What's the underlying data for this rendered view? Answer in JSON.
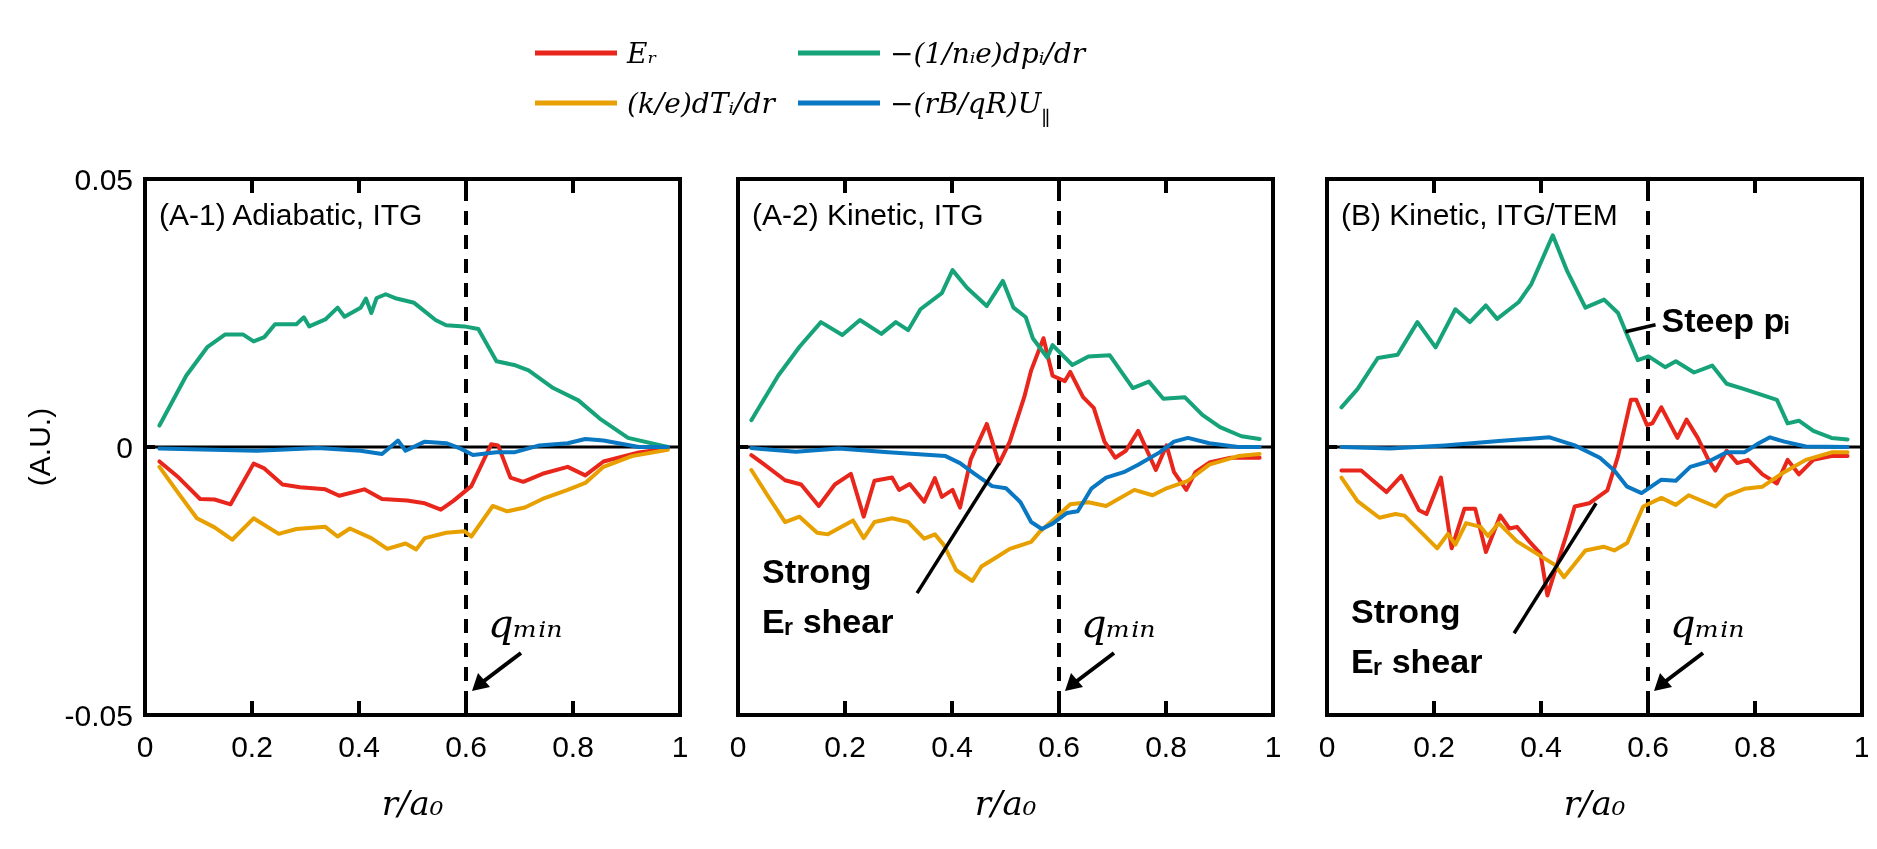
{
  "chart_data": [
    {
      "type": "line",
      "title": "(A-1) Adiabatic, ITG",
      "xlabel": "r/a₀",
      "ylabel": "(A.U.)",
      "xlim": [
        0,
        1
      ],
      "xticks": [
        0,
        0.2,
        0.4,
        0.6,
        0.8,
        1
      ],
      "ylim": [
        -0.05,
        0.05
      ],
      "yticks": [
        -0.05,
        0,
        0.05
      ],
      "legend": "top",
      "line_style": "solid",
      "ref_lines": [
        {
          "axis": "y",
          "value": 0,
          "color": "#000000",
          "line_style": "solid"
        },
        {
          "axis": "x",
          "value": 0.6,
          "label": "qₘᵢₙ",
          "color": "#000000",
          "line_style": "dashed"
        }
      ],
      "series": [
        {
          "name": "Eᵣ",
          "color": "#e8261b",
          "x": [
            0.027,
            0.063,
            0.103,
            0.13,
            0.16,
            0.203,
            0.223,
            0.257,
            0.29,
            0.337,
            0.363,
            0.41,
            0.443,
            0.49,
            0.523,
            0.553,
            0.577,
            0.61,
            0.647,
            0.66,
            0.683,
            0.707,
            0.743,
            0.79,
            0.823,
            0.857,
            0.923,
            0.977
          ],
          "values": [
            -0.0027,
            -0.0057,
            -0.0097,
            -0.0098,
            -0.0107,
            -0.0031,
            -0.004,
            -0.007,
            -0.0075,
            -0.0079,
            -0.0091,
            -0.0079,
            -0.0097,
            -0.01,
            -0.0105,
            -0.0117,
            -0.01,
            -0.0073,
            0.0005,
            0.0003,
            -0.0057,
            -0.0065,
            -0.005,
            -0.0037,
            -0.0053,
            -0.0027,
            -0.001,
            -0.0003
          ]
        },
        {
          "name": "−(1/nᵢe)dpᵢ/dr",
          "color": "#16a37a",
          "x": [
            0.027,
            0.077,
            0.117,
            0.15,
            0.183,
            0.203,
            0.223,
            0.243,
            0.283,
            0.297,
            0.307,
            0.337,
            0.36,
            0.373,
            0.403,
            0.413,
            0.423,
            0.433,
            0.45,
            0.47,
            0.503,
            0.523,
            0.543,
            0.563,
            0.597,
            0.623,
            0.657,
            0.69,
            0.717,
            0.763,
            0.81,
            0.85,
            0.903,
            0.977
          ],
          "values": [
            0.004,
            0.0133,
            0.0187,
            0.021,
            0.021,
            0.0197,
            0.0205,
            0.0229,
            0.0229,
            0.0242,
            0.0225,
            0.0238,
            0.026,
            0.0243,
            0.026,
            0.0277,
            0.025,
            0.0278,
            0.0285,
            0.0277,
            0.0269,
            0.0253,
            0.0237,
            0.0227,
            0.0225,
            0.022,
            0.016,
            0.0153,
            0.0143,
            0.011,
            0.0087,
            0.0053,
            0.0017,
            0
          ]
        },
        {
          "name": "(k/e)dTᵢ/dr",
          "color": "#e8a000",
          "x": [
            0.027,
            0.063,
            0.097,
            0.13,
            0.163,
            0.203,
            0.25,
            0.283,
            0.337,
            0.36,
            0.383,
            0.423,
            0.453,
            0.487,
            0.507,
            0.523,
            0.563,
            0.597,
            0.61,
            0.65,
            0.677,
            0.71,
            0.743,
            0.79,
            0.823,
            0.857,
            0.91,
            0.977
          ],
          "values": [
            -0.0037,
            -0.0087,
            -0.0133,
            -0.015,
            -0.0173,
            -0.0133,
            -0.0162,
            -0.0153,
            -0.0149,
            -0.0167,
            -0.0152,
            -0.017,
            -0.019,
            -0.018,
            -0.0191,
            -0.017,
            -0.016,
            -0.0157,
            -0.0167,
            -0.011,
            -0.012,
            -0.0113,
            -0.0097,
            -0.008,
            -0.0067,
            -0.0037,
            -0.0017,
            -0.0005
          ]
        },
        {
          "name": "−(rB/qR)U$_{∥}$",
          "color": "#0a77c2",
          "x": [
            0.027,
            0.21,
            0.323,
            0.403,
            0.443,
            0.473,
            0.487,
            0.523,
            0.563,
            0.59,
            0.613,
            0.657,
            0.69,
            0.737,
            0.79,
            0.823,
            0.857,
            0.923,
            0.977
          ],
          "values": [
            -0.0003,
            -0.0007,
            -0.0002,
            -0.0007,
            -0.0013,
            0.0012,
            -0.0007,
            0.001,
            0.0007,
            -0.0003,
            -0.0015,
            -0.001,
            -0.001,
            0.0003,
            0.0007,
            0.0015,
            0.0012,
            0,
            0
          ]
        }
      ]
    },
    {
      "type": "line",
      "title": "(A-2) Kinetic, ITG",
      "xlabel": "r/a₀",
      "xlim": [
        0,
        1
      ],
      "xticks": [
        0,
        0.2,
        0.4,
        0.6,
        0.8,
        1
      ],
      "ylim": [
        -0.05,
        0.05
      ],
      "yticks": [
        -0.05,
        0,
        0.05
      ],
      "tick_labels": "x",
      "line_style": "solid",
      "ref_lines": [
        {
          "axis": "y",
          "value": 0,
          "color": "#000000",
          "line_style": "solid"
        },
        {
          "axis": "x",
          "value": 0.6,
          "label": "qₘᵢₙ",
          "color": "#000000",
          "line_style": "dashed"
        }
      ],
      "annotations": [
        {
          "text": "Strong Eᵣ shear",
          "x": 0.488,
          "y": -0.003
        }
      ],
      "series": [
        {
          "color": "#e8261b",
          "x": [
            0.025,
            0.055,
            0.088,
            0.118,
            0.151,
            0.181,
            0.211,
            0.235,
            0.255,
            0.288,
            0.301,
            0.321,
            0.348,
            0.368,
            0.381,
            0.401,
            0.415,
            0.435,
            0.465,
            0.488,
            0.508,
            0.535,
            0.548,
            0.571,
            0.588,
            0.611,
            0.621,
            0.645,
            0.665,
            0.685,
            0.705,
            0.725,
            0.748,
            0.781,
            0.801,
            0.815,
            0.838,
            0.855,
            0.881,
            0.921,
            0.975
          ],
          "values": [
            -0.0015,
            -0.0037,
            -0.0062,
            -0.007,
            -0.011,
            -0.007,
            -0.005,
            -0.013,
            -0.0063,
            -0.0057,
            -0.008,
            -0.0069,
            -0.0102,
            -0.0058,
            -0.0093,
            -0.008,
            -0.0113,
            -0.0023,
            0.0043,
            -0.0031,
            0.001,
            0.0093,
            0.0143,
            0.0203,
            0.0133,
            0.0123,
            0.014,
            0.0093,
            0.0073,
            0.001,
            -0.002,
            -0.0007,
            0.003,
            -0.0043,
            0.0003,
            -0.0047,
            -0.008,
            -0.0047,
            -0.0029,
            -0.002,
            -0.002
          ]
        },
        {
          "color": "#16a37a",
          "x": [
            0.025,
            0.075,
            0.115,
            0.155,
            0.195,
            0.228,
            0.268,
            0.295,
            0.318,
            0.341,
            0.381,
            0.401,
            0.428,
            0.465,
            0.495,
            0.515,
            0.538,
            0.551,
            0.578,
            0.588,
            0.625,
            0.655,
            0.695,
            0.738,
            0.768,
            0.795,
            0.835,
            0.868,
            0.901,
            0.941,
            0.975
          ],
          "values": [
            0.005,
            0.0133,
            0.0187,
            0.0233,
            0.0209,
            0.0237,
            0.0211,
            0.0233,
            0.0218,
            0.0257,
            0.0287,
            0.033,
            0.0297,
            0.0263,
            0.031,
            0.026,
            0.0242,
            0.0203,
            0.0167,
            0.019,
            0.0153,
            0.0169,
            0.0171,
            0.011,
            0.0122,
            0.009,
            0.0093,
            0.006,
            0.0037,
            0.002,
            0.0015
          ]
        },
        {
          "color": "#e8a000",
          "x": [
            0.025,
            0.055,
            0.088,
            0.115,
            0.148,
            0.168,
            0.215,
            0.235,
            0.255,
            0.288,
            0.318,
            0.348,
            0.368,
            0.385,
            0.408,
            0.438,
            0.455,
            0.481,
            0.508,
            0.548,
            0.565,
            0.588,
            0.621,
            0.655,
            0.688,
            0.741,
            0.775,
            0.801,
            0.841,
            0.881,
            0.935,
            0.975
          ],
          "values": [
            -0.0043,
            -0.009,
            -0.014,
            -0.013,
            -0.016,
            -0.0163,
            -0.0137,
            -0.017,
            -0.014,
            -0.0133,
            -0.014,
            -0.0171,
            -0.0163,
            -0.0183,
            -0.023,
            -0.025,
            -0.0223,
            -0.0207,
            -0.019,
            -0.0177,
            -0.0157,
            -0.0137,
            -0.0107,
            -0.0103,
            -0.011,
            -0.008,
            -0.009,
            -0.0077,
            -0.0063,
            -0.0033,
            -0.0017,
            -0.0013
          ]
        },
        {
          "color": "#0a77c2",
          "x": [
            0.025,
            0.108,
            0.188,
            0.281,
            0.388,
            0.415,
            0.441,
            0.475,
            0.501,
            0.528,
            0.548,
            0.568,
            0.588,
            0.615,
            0.635,
            0.661,
            0.688,
            0.721,
            0.748,
            0.788,
            0.815,
            0.841,
            0.881,
            0.935,
            0.975
          ],
          "values": [
            -0.0002,
            -0.0009,
            -0.0003,
            -0.001,
            -0.0017,
            -0.003,
            -0.0049,
            -0.0073,
            -0.0077,
            -0.0103,
            -0.014,
            -0.0153,
            -0.0143,
            -0.0123,
            -0.012,
            -0.0077,
            -0.0057,
            -0.0047,
            -0.0033,
            -0.001,
            0.001,
            0.0017,
            0.0007,
            0,
            0
          ]
        }
      ]
    },
    {
      "type": "line",
      "title": "(B) Kinetic, ITG/TEM",
      "xlabel": "r/a₀",
      "xlim": [
        0,
        1
      ],
      "xticks": [
        0,
        0.2,
        0.4,
        0.6,
        0.8,
        1
      ],
      "ylim": [
        -0.05,
        0.05
      ],
      "yticks": [
        -0.05,
        0,
        0.05
      ],
      "tick_labels": "x",
      "line_style": "solid",
      "ref_lines": [
        {
          "axis": "y",
          "value": 0,
          "color": "#000000",
          "line_style": "solid"
        },
        {
          "axis": "x",
          "value": 0.6,
          "label": "qₘᵢₙ",
          "color": "#000000",
          "line_style": "dashed"
        }
      ],
      "annotations": [
        {
          "text": "Strong Eᵣ shear",
          "x": 0.503,
          "y": -0.0105
        },
        {
          "text": "Steep pᵢ",
          "x": 0.558,
          "y": 0.0215
        }
      ],
      "series": [
        {
          "color": "#e8261b",
          "x": [
            0.027,
            0.064,
            0.084,
            0.111,
            0.139,
            0.172,
            0.186,
            0.213,
            0.233,
            0.257,
            0.277,
            0.297,
            0.324,
            0.341,
            0.355,
            0.378,
            0.399,
            0.412,
            0.449,
            0.463,
            0.49,
            0.524,
            0.544,
            0.568,
            0.578,
            0.598,
            0.608,
            0.625,
            0.655,
            0.672,
            0.693,
            0.713,
            0.726,
            0.747,
            0.767,
            0.787,
            0.814,
            0.841,
            0.861,
            0.882,
            0.909,
            0.943,
            0.973
          ],
          "values": [
            -0.0044,
            -0.0044,
            -0.0061,
            -0.0084,
            -0.0054,
            -0.0118,
            -0.0125,
            -0.0057,
            -0.0189,
            -0.0115,
            -0.0115,
            -0.0196,
            -0.0128,
            -0.0152,
            -0.0149,
            -0.0176,
            -0.0199,
            -0.0277,
            -0.0159,
            -0.0111,
            -0.0105,
            -0.0081,
            -0.0017,
            0.0088,
            0.0088,
            0.0041,
            0.0044,
            0.0074,
            0.0017,
            0.0051,
            0.0017,
            -0.0024,
            -0.0044,
            -0.0007,
            -0.003,
            -0.0024,
            -0.0051,
            -0.0068,
            -0.0024,
            -0.0051,
            -0.0024,
            -0.0017,
            -0.0017
          ]
        },
        {
          "color": "#16a37a",
          "x": [
            0.027,
            0.057,
            0.095,
            0.132,
            0.169,
            0.203,
            0.24,
            0.267,
            0.297,
            0.318,
            0.358,
            0.382,
            0.422,
            0.449,
            0.483,
            0.518,
            0.544,
            0.561,
            0.581,
            0.601,
            0.632,
            0.652,
            0.686,
            0.72,
            0.747,
            0.78,
            0.841,
            0.861,
            0.882,
            0.909,
            0.943,
            0.973
          ],
          "values": [
            0.0074,
            0.0108,
            0.0166,
            0.0172,
            0.0233,
            0.0186,
            0.0257,
            0.0233,
            0.0264,
            0.0239,
            0.027,
            0.0304,
            0.0395,
            0.0328,
            0.026,
            0.0275,
            0.025,
            0.0209,
            0.0162,
            0.0169,
            0.0149,
            0.016,
            0.0139,
            0.0152,
            0.0118,
            0.0108,
            0.0088,
            0.0044,
            0.0049,
            0.003,
            0.0017,
            0.0014
          ]
        },
        {
          "color": "#e8a000",
          "x": [
            0.027,
            0.057,
            0.098,
            0.128,
            0.145,
            0.172,
            0.206,
            0.226,
            0.24,
            0.26,
            0.287,
            0.301,
            0.321,
            0.355,
            0.392,
            0.426,
            0.443,
            0.483,
            0.517,
            0.537,
            0.561,
            0.591,
            0.625,
            0.652,
            0.676,
            0.726,
            0.747,
            0.78,
            0.814,
            0.848,
            0.895,
            0.943,
            0.973
          ],
          "values": [
            -0.0057,
            -0.0101,
            -0.0132,
            -0.0125,
            -0.0128,
            -0.0155,
            -0.0189,
            -0.0162,
            -0.0182,
            -0.0142,
            -0.0149,
            -0.0166,
            -0.0142,
            -0.0176,
            -0.0199,
            -0.022,
            -0.0243,
            -0.0193,
            -0.0186,
            -0.0193,
            -0.0179,
            -0.0111,
            -0.0095,
            -0.0108,
            -0.009,
            -0.0111,
            -0.0091,
            -0.0078,
            -0.0074,
            -0.0051,
            -0.0024,
            -0.001,
            -0.001
          ]
        },
        {
          "color": "#0a77c2",
          "x": [
            0.027,
            0.118,
            0.22,
            0.321,
            0.416,
            0.463,
            0.51,
            0.537,
            0.561,
            0.588,
            0.625,
            0.652,
            0.679,
            0.713,
            0.747,
            0.78,
            0.807,
            0.828,
            0.855,
            0.895,
            0.973
          ],
          "values": [
            0,
            -0.0003,
            0.0003,
            0.0011,
            0.0018,
            0.0003,
            -0.002,
            -0.0044,
            -0.0074,
            -0.0086,
            -0.0061,
            -0.0063,
            -0.0037,
            -0.0027,
            -0.001,
            -0.001,
            0.0007,
            0.0018,
            0.001,
            0.0001,
            0
          ]
        }
      ]
    }
  ]
}
